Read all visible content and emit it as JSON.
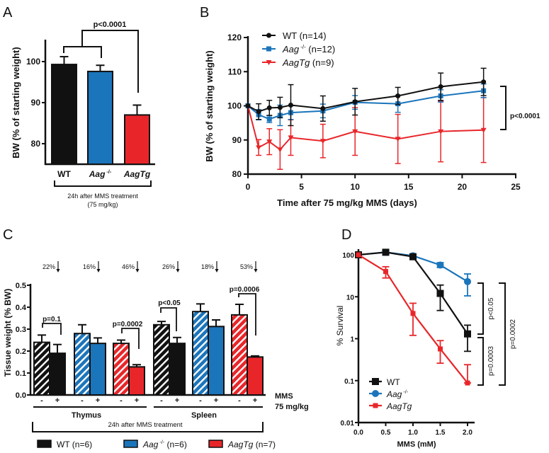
{
  "colors": {
    "wt": "#111111",
    "aag": "#1b75bb",
    "aagtg": "#e8262a"
  },
  "chart_data": [
    {
      "panel": "A",
      "type": "bar",
      "ylabel": "BW (% of starting weight)",
      "ylim": [
        75,
        105
      ],
      "yticks": [
        80,
        90,
        100
      ],
      "categories": [
        {
          "name": "WT",
          "sup": "",
          "italic": false
        },
        {
          "name": "Aag",
          "sup": "-/-",
          "italic": true
        },
        {
          "name": "AagTg",
          "sup": "",
          "italic": true
        }
      ],
      "values": [
        99.3,
        97.6,
        87.0
      ],
      "errors": [
        1.9,
        1.5,
        2.4
      ],
      "annotation": "p<0.0001",
      "footnote": [
        "24h after MMS treatment",
        "(75 mg/kg)"
      ]
    },
    {
      "panel": "B",
      "type": "line",
      "xlabel": "Time after 75 mg/kg MMS (days)",
      "ylabel": "BW (% of starting weight)",
      "xlim": [
        0,
        25
      ],
      "ylim": [
        80,
        120
      ],
      "xticks": [
        0,
        5,
        10,
        15,
        20,
        25
      ],
      "yticks": [
        80,
        90,
        100,
        110,
        120
      ],
      "x": [
        0,
        1,
        2,
        3,
        4,
        7,
        10,
        14,
        18,
        22
      ],
      "series": [
        {
          "name": "WT",
          "sup": "",
          "n": "(n=14)",
          "italic": false,
          "marker": "circle",
          "values": [
            100,
            98.3,
            99.4,
            99.5,
            100.2,
            99.2,
            101.2,
            102.9,
            105.6,
            107.0
          ],
          "errors": [
            0,
            2.3,
            2.2,
            3.0,
            6.0,
            3.7,
            3.9,
            2.5,
            4.0,
            4.0
          ]
        },
        {
          "name": "Aag",
          "sup": "-/-",
          "n": "(n=12)",
          "italic": true,
          "marker": "square",
          "values": [
            100,
            97.4,
            96.1,
            97.2,
            98.0,
            98.5,
            101.0,
            100.6,
            102.9,
            104.4
          ],
          "errors": [
            0,
            1.5,
            1.0,
            3.0,
            2.0,
            2.0,
            2.0,
            2.5,
            1.8,
            2.0
          ]
        },
        {
          "name": "AagTg",
          "sup": "",
          "n": "(n=9)",
          "italic": true,
          "marker": "triangle",
          "values": [
            100,
            87.8,
            89.5,
            87.2,
            90.7,
            89.7,
            92.5,
            90.3,
            92.5,
            92.9
          ],
          "errors": [
            0,
            2.3,
            3.8,
            5.8,
            5.2,
            4.9,
            7.0,
            7.2,
            8.9,
            9.5
          ]
        }
      ],
      "annotation": "p<0.0001"
    },
    {
      "panel": "C",
      "type": "bar",
      "ylabel": "Tissue weight (% BW)",
      "ylim": [
        0,
        0.5
      ],
      "yticks": [
        "0.0",
        "0.1",
        "0.2",
        "0.3",
        "0.4",
        "0.5"
      ],
      "treatment_labels": [
        "-",
        "+"
      ],
      "treatment_axis": [
        "MMS",
        "75 mg/kg"
      ],
      "tissues": [
        "Thymus",
        "Spleen"
      ],
      "footnote": "24h after MMS treatment",
      "groups": [
        {
          "tissue": "Thymus",
          "genotype": "wt",
          "values": [
            0.24,
            0.19
          ],
          "errors": [
            0.033,
            0.04
          ],
          "reduction": "22%"
        },
        {
          "tissue": "Thymus",
          "genotype": "aag",
          "values": [
            0.28,
            0.235
          ],
          "errors": [
            0.04,
            0.025
          ],
          "reduction": "16%"
        },
        {
          "tissue": "Thymus",
          "genotype": "aagtg",
          "values": [
            0.235,
            0.128
          ],
          "errors": [
            0.015,
            0.01
          ],
          "reduction": "46%"
        },
        {
          "tissue": "Spleen",
          "genotype": "wt",
          "values": [
            0.32,
            0.235
          ],
          "errors": [
            0.015,
            0.027
          ],
          "reduction": "26%"
        },
        {
          "tissue": "Spleen",
          "genotype": "aag",
          "values": [
            0.38,
            0.312
          ],
          "errors": [
            0.035,
            0.03
          ],
          "reduction": "18%"
        },
        {
          "tissue": "Spleen",
          "genotype": "aagtg",
          "values": [
            0.365,
            0.173
          ],
          "errors": [
            0.048,
            0.005
          ],
          "reduction": "53%"
        }
      ],
      "pvalues": [
        "p=0.1",
        "p=0.0002",
        "p<0.05",
        "p=0.0006"
      ],
      "legend": [
        {
          "name": "WT",
          "sup": "",
          "n": "(n=6)",
          "italic": false
        },
        {
          "name": "Aag",
          "sup": "-/-",
          "n": "(n=6)",
          "italic": true
        },
        {
          "name": "AagTg",
          "sup": "",
          "n": "(n=7)",
          "italic": true
        }
      ]
    },
    {
      "panel": "D",
      "type": "line",
      "yscale": "log",
      "xlabel": "MMS (mM)",
      "ylabel": "% Survival",
      "xlim": [
        0,
        2.2
      ],
      "ylim": [
        0.01,
        100
      ],
      "xticks": [
        "0.0",
        "0.5",
        "1.0",
        "1.5",
        "2.0"
      ],
      "yticks": [
        "100",
        "10",
        "1",
        "0.1",
        "0.01"
      ],
      "x": [
        0,
        0.5,
        1.0,
        1.5,
        2.0
      ],
      "series": [
        {
          "name": "WT",
          "sup": "",
          "italic": false,
          "marker": "square",
          "values": [
            100,
            115,
            90,
            12,
            1.3
          ],
          "lower": [
            100,
            100,
            78,
            4.7,
            0.5
          ],
          "upper": [
            100,
            130,
            102,
            19,
            2.1
          ]
        },
        {
          "name": "Aag",
          "sup": "-/-",
          "italic": true,
          "marker": "circle",
          "values": [
            100,
            115,
            95,
            57,
            23
          ],
          "lower": [
            100,
            100,
            85,
            50,
            10.5
          ],
          "upper": [
            100,
            130,
            105,
            65,
            35
          ]
        },
        {
          "name": "AagTg",
          "sup": "",
          "italic": true,
          "marker": "square-small",
          "values": [
            100,
            40,
            4,
            0.57,
            0.088
          ],
          "lower": [
            100,
            28,
            1.2,
            0.26,
            0.088
          ],
          "upper": [
            100,
            52,
            7,
            0.9,
            0.24
          ]
        }
      ],
      "pvalues": [
        "p<0.05",
        "p=0.0003",
        "p=0.0002"
      ]
    }
  ]
}
